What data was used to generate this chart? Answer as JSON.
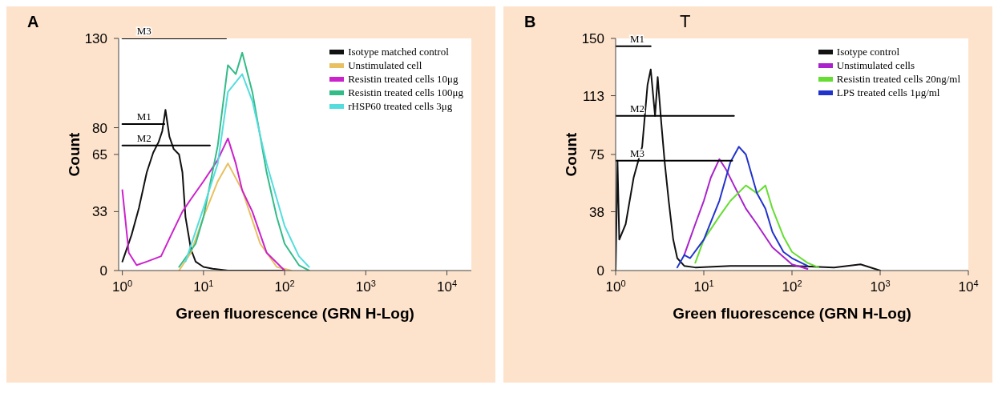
{
  "chart_data": [
    {
      "type": "line",
      "title": "A",
      "xlabel": "Green fluorescence (GRN H-Log)",
      "ylabel": "Count",
      "log": "x",
      "legend": "top right",
      "marker": "none",
      "line_style": "solid",
      "xlim": [
        0.9,
        20000
      ],
      "xticks": [
        {
          "value": 1,
          "label": "10$^{0}$"
        },
        {
          "value": 10,
          "label": "10$^{1}$"
        },
        {
          "value": 100,
          "label": "10$^{2}$"
        },
        {
          "value": 1000,
          "label": "10$^{3}$"
        },
        {
          "value": 10000,
          "label": "10$^{4}$"
        }
      ],
      "ylim": [
        0,
        130
      ],
      "yticks": [
        0,
        33,
        65,
        80,
        130
      ],
      "series": [
        {
          "name": "Isotype matched control",
          "color": "#111111",
          "x": [
            1,
            1.3,
            1.6,
            2,
            2.4,
            2.8,
            3.1,
            3.4,
            3.8,
            4.3,
            5,
            5.5,
            6,
            7,
            8,
            10,
            13,
            20,
            50,
            100
          ],
          "values": [
            5,
            20,
            35,
            55,
            66,
            72,
            78,
            90,
            75,
            68,
            65,
            55,
            30,
            12,
            5,
            2,
            1,
            0,
            0,
            0
          ]
        },
        {
          "name": "Unstimulated cell",
          "color": "#e8c060",
          "x": [
            5,
            7,
            10,
            15,
            20,
            30,
            50,
            80,
            120
          ],
          "values": [
            0,
            10,
            30,
            50,
            60,
            45,
            15,
            2,
            0
          ]
        },
        {
          "name": "Resistin treated cells 10μg",
          "color": "#cc22cc",
          "x": [
            1,
            1.2,
            1.5,
            2,
            3,
            4,
            5.5,
            7,
            10,
            15,
            20,
            25,
            30,
            40,
            60,
            100
          ],
          "values": [
            45,
            10,
            3,
            5,
            8,
            20,
            33,
            40,
            50,
            62,
            74,
            60,
            45,
            33,
            10,
            0
          ]
        },
        {
          "name": "Resistin treated cells 100μg",
          "color": "#33bb88",
          "x": [
            5,
            8,
            10,
            15,
            20,
            25,
            30,
            40,
            60,
            80,
            100,
            150,
            200
          ],
          "values": [
            2,
            15,
            30,
            70,
            115,
            110,
            122,
            100,
            55,
            30,
            15,
            3,
            0
          ]
        },
        {
          "name": "rHSP60 treated cells 3μg",
          "color": "#55dddd",
          "x": [
            6,
            10,
            15,
            20,
            30,
            40,
            60,
            100,
            150,
            200
          ],
          "values": [
            5,
            35,
            60,
            100,
            110,
            95,
            60,
            25,
            8,
            2
          ]
        },
        {
          "name": "M3",
          "color": "#000000",
          "x": [
            1,
            19
          ],
          "values": [
            130,
            130
          ]
        },
        {
          "name": "M1",
          "color": "#000000",
          "x": [
            1,
            3.3
          ],
          "values": [
            82,
            82
          ]
        },
        {
          "name": "M2",
          "color": "#000000",
          "x": [
            1,
            12
          ],
          "values": [
            70,
            70
          ]
        }
      ]
    },
    {
      "type": "line",
      "title": "B",
      "xlabel": "Green fluorescence (GRN H-Log)",
      "ylabel": "Count",
      "log": "x",
      "legend": "top right",
      "marker": "none",
      "line_style": "solid",
      "xlim": [
        1,
        10000
      ],
      "xticks": [
        {
          "value": 1,
          "label": "10$^{0}$"
        },
        {
          "value": 10,
          "label": "10$^{1}$"
        },
        {
          "value": 100,
          "label": "10$^{2}$"
        },
        {
          "value": 1000,
          "label": "10$^{3}$"
        },
        {
          "value": 10000,
          "label": "10$^{4}$"
        }
      ],
      "ylim": [
        0,
        150
      ],
      "yticks": [
        0,
        38,
        75,
        113,
        150
      ],
      "series": [
        {
          "name": "Isotype control",
          "color": "#111111",
          "x": [
            1,
            1.05,
            1.1,
            1.3,
            1.6,
            2,
            2.3,
            2.5,
            2.8,
            3,
            3.3,
            3.6,
            4,
            4.5,
            5,
            6,
            8,
            20,
            100,
            300,
            600,
            1000
          ],
          "values": [
            0,
            71,
            20,
            30,
            60,
            80,
            120,
            130,
            100,
            125,
            95,
            70,
            45,
            20,
            8,
            3,
            2,
            3,
            3,
            2,
            4,
            0
          ]
        },
        {
          "name": "Unstimulated cells",
          "color": "#aa22cc",
          "x": [
            6,
            8,
            10,
            12,
            15,
            18,
            22,
            30,
            40,
            60,
            100,
            150
          ],
          "values": [
            10,
            30,
            45,
            60,
            72,
            65,
            55,
            40,
            30,
            15,
            4,
            1
          ]
        },
        {
          "name": "Resistin treated cells 20ng/ml",
          "color": "#66dd33",
          "x": [
            8,
            10,
            15,
            20,
            30,
            40,
            50,
            60,
            80,
            100,
            150,
            200
          ],
          "values": [
            5,
            20,
            35,
            45,
            55,
            50,
            55,
            40,
            22,
            12,
            5,
            2
          ]
        },
        {
          "name": "LPS treated cells 1μg/ml",
          "color": "#2233cc",
          "x": [
            5,
            6,
            7,
            10,
            15,
            20,
            25,
            30,
            40,
            50,
            60,
            80,
            100,
            150
          ],
          "values": [
            2,
            10,
            8,
            20,
            45,
            70,
            80,
            75,
            50,
            40,
            25,
            12,
            8,
            3
          ]
        },
        {
          "name": "M1",
          "color": "#000000",
          "x": [
            1,
            2.5
          ],
          "values": [
            145,
            145
          ]
        },
        {
          "name": "M2",
          "color": "#000000",
          "x": [
            1,
            22
          ],
          "values": [
            100,
            100
          ]
        },
        {
          "name": "M3",
          "color": "#000000",
          "x": [
            1,
            21
          ],
          "values": [
            71,
            71
          ]
        }
      ],
      "annotations": [
        "T"
      ]
    }
  ]
}
